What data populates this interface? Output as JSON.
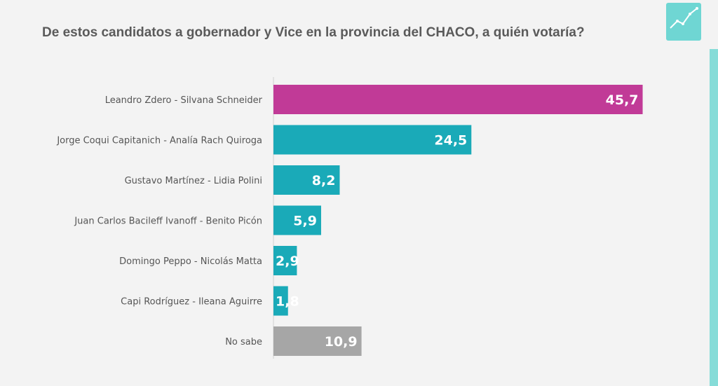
{
  "title": "De estos candidatos a gobernador y Vice en la provincia del CHACO, a quién votaría?",
  "logo": {
    "icon": "trend-chart-icon",
    "color": "#6fd6d3"
  },
  "accent_color": "#86dcd8",
  "chart_data": {
    "type": "bar",
    "orientation": "horizontal",
    "title": "De estos candidatos a gobernador y Vice en la provincia del CHACO, a quién votaría?",
    "categories": [
      "Leandro Zdero -  Silvana Schneider",
      "Jorge Coqui Capitanich - Analía Rach Quiroga",
      "Gustavo Martínez - Lidia Polini",
      "Juan Carlos Bacileff Ivanoff - Benito Picón",
      "Domingo Peppo - Nicolás Matta",
      "Capi Rodríguez - Ileana Aguirre",
      "No sabe"
    ],
    "values": [
      45.7,
      24.5,
      8.2,
      5.9,
      2.9,
      1.8,
      10.9
    ],
    "value_labels": [
      "45,7",
      "24,5",
      "8,2",
      "5,9",
      "2,9",
      "1,8",
      "10,9"
    ],
    "colors": [
      "#c13a97",
      "#1aaab8",
      "#1aaab8",
      "#1aaab8",
      "#1aaab8",
      "#1aaab8",
      "#a6a6a6"
    ],
    "xlim": [
      0,
      46
    ],
    "grid": false,
    "legend": "none"
  }
}
